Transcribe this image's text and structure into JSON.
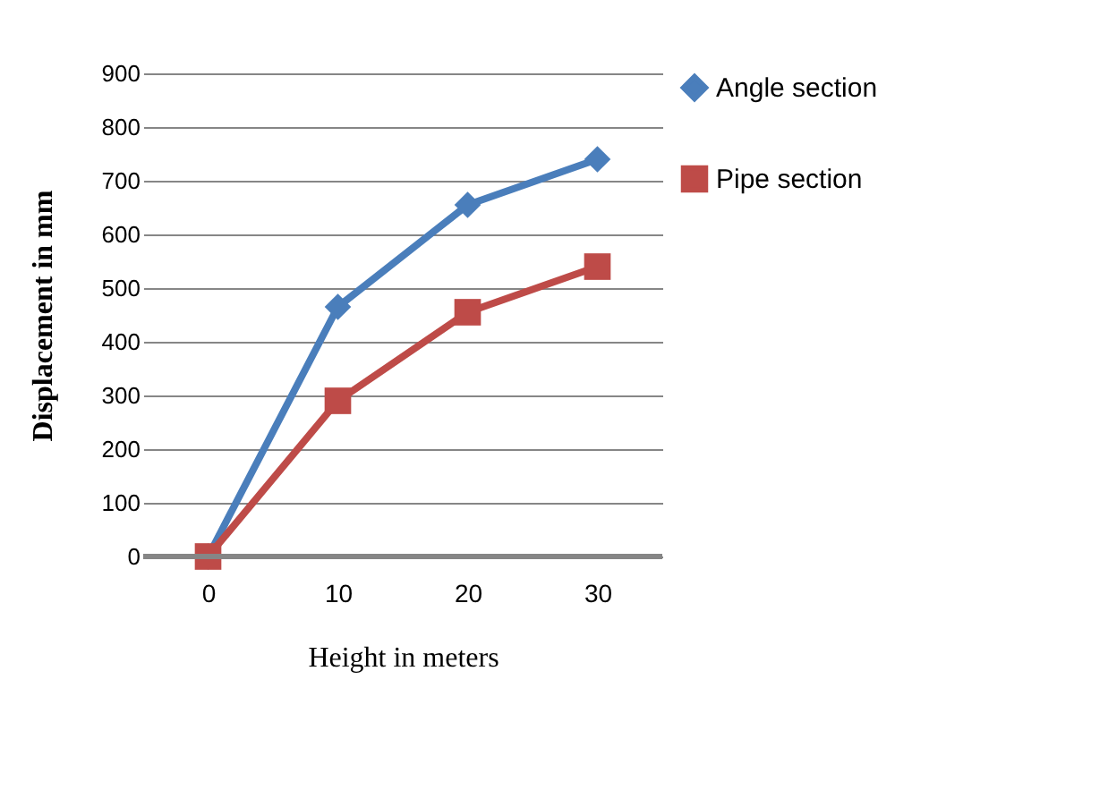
{
  "chart_data": {
    "type": "line",
    "xlabel": "Height in meters",
    "ylabel": "Displacement in mm",
    "categories": [
      "0",
      "10",
      "20",
      "30"
    ],
    "series": [
      {
        "name": "Angle section",
        "color": "#4a7ebb",
        "marker": "diamond",
        "values": [
          0,
          465,
          655,
          740
        ]
      },
      {
        "name": "Pipe section",
        "color": "#be4b48",
        "marker": "square",
        "values": [
          0,
          290,
          455,
          540
        ]
      }
    ],
    "ylim": [
      0,
      900
    ],
    "yticks": [
      0,
      100,
      200,
      300,
      400,
      500,
      600,
      700,
      800,
      900
    ],
    "grid": "y",
    "legend": "right"
  }
}
